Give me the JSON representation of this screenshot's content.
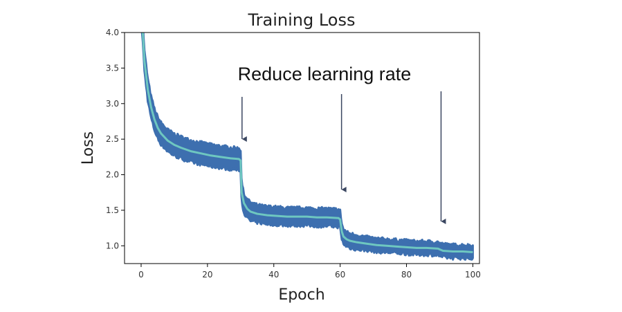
{
  "chart_data": {
    "type": "line",
    "title": "Training Loss",
    "xlabel": "Epoch",
    "ylabel": "Loss",
    "xlim": [
      -5,
      102
    ],
    "ylim": [
      0.75,
      4.0
    ],
    "xticks": [
      0,
      20,
      40,
      60,
      80,
      100
    ],
    "yticks": [
      1.0,
      1.5,
      2.0,
      2.5,
      3.0,
      3.5,
      4.0
    ],
    "xtick_labels": [
      "0",
      "20",
      "40",
      "60",
      "80",
      100
    ],
    "ytick_labels": [
      "1.0",
      "1.5",
      "2.0",
      "2.5",
      "3.0",
      "3.5",
      "4.0"
    ],
    "grid": false,
    "band_color": "#3d6faf",
    "line_color": "#6ec7c0",
    "annotation": {
      "text": "Reduce learning rate",
      "arrow_epochs": [
        30,
        60,
        90
      ]
    },
    "series": [
      {
        "x": [
          0,
          0.5,
          1,
          2,
          3,
          4,
          5,
          6,
          8,
          10,
          12,
          15,
          18,
          21,
          24,
          27,
          29.5,
          30,
          30.3,
          31,
          32,
          33,
          35,
          38,
          41,
          44,
          47,
          50,
          53,
          56,
          59.5,
          60,
          60.5,
          61,
          62,
          63,
          65,
          68,
          71,
          74,
          77,
          80,
          83,
          86,
          89.5,
          90,
          91,
          94,
          97,
          100
        ],
        "values": [
          4.3,
          4.0,
          3.6,
          3.2,
          2.95,
          2.78,
          2.66,
          2.58,
          2.48,
          2.42,
          2.38,
          2.33,
          2.3,
          2.27,
          2.25,
          2.23,
          2.22,
          2.2,
          1.75,
          1.6,
          1.52,
          1.48,
          1.45,
          1.43,
          1.42,
          1.41,
          1.41,
          1.41,
          1.4,
          1.4,
          1.39,
          1.37,
          1.2,
          1.13,
          1.09,
          1.07,
          1.05,
          1.03,
          1.01,
          1.0,
          0.99,
          0.98,
          0.97,
          0.97,
          0.96,
          0.95,
          0.93,
          0.92,
          0.92,
          0.91
        ],
        "band": [
          0.13,
          0.13,
          0.14,
          0.15,
          0.15,
          0.15,
          0.15,
          0.15,
          0.15,
          0.15,
          0.15,
          0.15,
          0.15,
          0.15,
          0.15,
          0.15,
          0.15,
          0.15,
          0.14,
          0.13,
          0.13,
          0.13,
          0.12,
          0.12,
          0.12,
          0.12,
          0.12,
          0.12,
          0.12,
          0.12,
          0.12,
          0.12,
          0.11,
          0.1,
          0.1,
          0.1,
          0.1,
          0.09,
          0.09,
          0.09,
          0.09,
          0.09,
          0.09,
          0.09,
          0.09,
          0.09,
          0.09,
          0.09,
          0.09,
          0.09
        ]
      }
    ]
  }
}
